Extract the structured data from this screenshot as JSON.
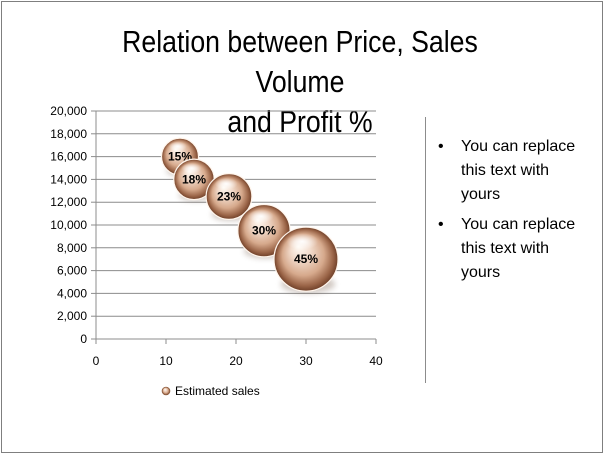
{
  "slide": {
    "title_line1": "Relation between Price, Sales Volume",
    "title_line2": "and Profit %",
    "bullets": [
      "You can replace this text with yours",
      "You can replace this text with yours"
    ]
  },
  "chart_data": {
    "type": "scatter",
    "variant": "bubble",
    "title": "",
    "xlabel": "",
    "ylabel": "",
    "xlim": [
      0,
      40
    ],
    "ylim": [
      0,
      20000
    ],
    "x_ticks": [
      "0",
      "10",
      "20",
      "30",
      "40"
    ],
    "y_ticks": [
      "0",
      "2,000",
      "4,000",
      "6,000",
      "8,000",
      "10,000",
      "12,000",
      "14,000",
      "16,000",
      "18,000",
      "20,000"
    ],
    "grid": true,
    "legend_position": "bottom",
    "series": [
      {
        "name": "Estimated sales",
        "points": [
          {
            "x": 12,
            "y": 16000,
            "size": 15,
            "label": "15%"
          },
          {
            "x": 14,
            "y": 14000,
            "size": 18,
            "label": "18%"
          },
          {
            "x": 19,
            "y": 12500,
            "size": 23,
            "label": "23%"
          },
          {
            "x": 24,
            "y": 9500,
            "size": 30,
            "label": "30%"
          },
          {
            "x": 30,
            "y": 7000,
            "size": 45,
            "label": "45%"
          }
        ]
      }
    ],
    "colors": {
      "bubble_highlight": "#fff8ef",
      "bubble_mid": "#d9a888",
      "bubble_shadow": "#7a4a30"
    }
  }
}
